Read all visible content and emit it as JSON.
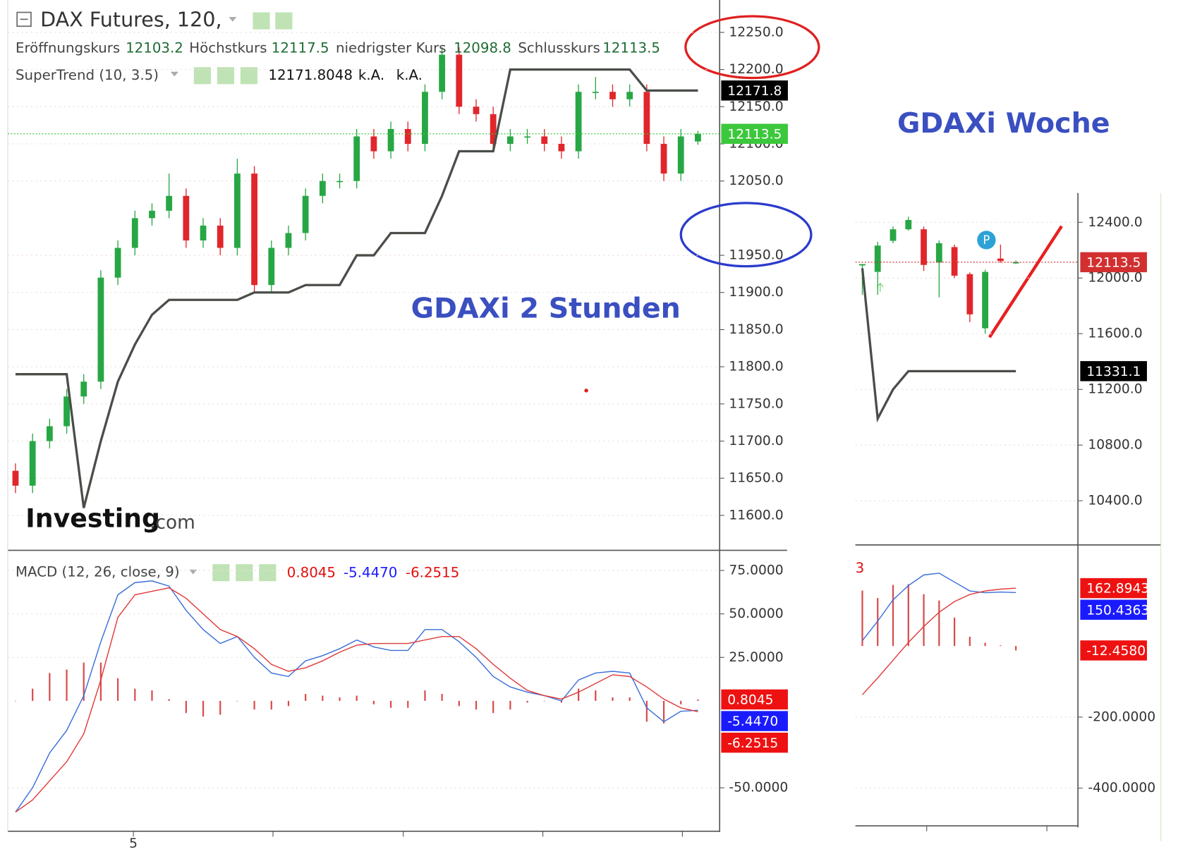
{
  "chart_data": [
    {
      "type": "candlestick",
      "title": "DAX Futures, 120,",
      "annotation": "GDAXi 2 Stunden",
      "watermark": [
        "Investing",
        ".com"
      ],
      "ohlc_labels": [
        "Eröffnungskurs",
        "Höchstkurs",
        "niedrigster Kurs",
        "Schlusskurs"
      ],
      "open": [
        11660,
        11640,
        11700,
        11720,
        11760,
        11780,
        11920,
        11960,
        12000,
        12010,
        12030,
        11970,
        11990,
        11960,
        12060,
        11910,
        11960,
        11980,
        12030,
        12050,
        12050,
        12110,
        12090,
        12120,
        12100,
        12170,
        12220,
        12150,
        12140,
        12100,
        12110,
        12110,
        12100,
        12090,
        12170,
        12170,
        12160,
        12170,
        12100,
        12060,
        12103.2
      ],
      "high": [
        11670,
        11710,
        11730,
        11770,
        11790,
        11930,
        11970,
        12010,
        12020,
        12060,
        12040,
        12000,
        12000,
        12080,
        12070,
        11970,
        11990,
        12040,
        12060,
        12060,
        12120,
        12120,
        12130,
        12130,
        12180,
        12230,
        12230,
        12160,
        12150,
        12120,
        12120,
        12120,
        12110,
        12180,
        12190,
        12180,
        12180,
        12180,
        12110,
        12120,
        12117.5
      ],
      "low": [
        11630,
        11630,
        11690,
        11710,
        11750,
        11770,
        11910,
        11950,
        11990,
        12000,
        11960,
        11960,
        11950,
        11950,
        11900,
        11900,
        11950,
        11970,
        12020,
        12040,
        12040,
        12080,
        12080,
        12090,
        12090,
        12160,
        12140,
        12130,
        12090,
        12090,
        12100,
        12090,
        12080,
        12080,
        12160,
        12150,
        12150,
        12090,
        12050,
        12050,
        12098.8
      ],
      "close": [
        11640,
        11700,
        11720,
        11760,
        11780,
        11920,
        11960,
        12000,
        12010,
        12030,
        11970,
        11990,
        11960,
        12060,
        11910,
        11960,
        11980,
        12030,
        12050,
        12050,
        12110,
        12090,
        12120,
        12100,
        12170,
        12220,
        12150,
        12140,
        12100,
        12110,
        12110,
        12100,
        12090,
        12170,
        12170,
        12160,
        12170,
        12100,
        12060,
        12110,
        12113.5
      ],
      "up_color": "#27a744",
      "down_color": "#e0262b",
      "price_line_color": "#3cc83c",
      "indicator": {
        "name": "SuperTrend (10, 3.5)",
        "color": "#4a4d48",
        "na_labels": [
          "k.A.",
          "k.A."
        ],
        "axis_label": "12171.8",
        "values": [
          11790,
          11790,
          11790,
          11790,
          11610,
          11700,
          11780,
          11830,
          11870,
          11890,
          11890,
          11890,
          11890,
          11890,
          11900,
          11900,
          11900,
          11910,
          11910,
          11910,
          11950,
          11950,
          11980,
          11980,
          11980,
          12030,
          12090,
          12090,
          12090,
          12200,
          12200,
          12200,
          12200,
          12200,
          12200,
          12200,
          12200,
          12171.8,
          12171.8,
          12171.8,
          12171.8048
        ]
      },
      "ylim": [
        11553,
        12293.6
      ],
      "yticks": [
        {
          "value": 12250,
          "label": "12250.0"
        },
        {
          "value": 12200,
          "label": "12200.0"
        },
        {
          "value": 12150,
          "label": "12150.0"
        },
        {
          "value": 12100,
          "label": "12100.0"
        },
        {
          "value": 12050,
          "label": "12050.0"
        },
        {
          "value": 11950,
          "label": "11950.0"
        },
        {
          "value": 11900,
          "label": "11900.0"
        },
        {
          "value": 11850,
          "label": "11850.0"
        },
        {
          "value": 11800,
          "label": "11800.0"
        },
        {
          "value": 11750,
          "label": "11750.0"
        },
        {
          "value": 11700,
          "label": "11700.0"
        },
        {
          "value": 11650,
          "label": "11650.0"
        },
        {
          "value": 11600,
          "label": "11600.0"
        }
      ],
      "grid": true
    },
    {
      "type": "macd",
      "title": "MACD (12, 26, close, 9)",
      "x_tick_label": "5",
      "series": [
        {
          "kind": "histogram",
          "color": "#d94a4a",
          "values": [
            0,
            7,
            16,
            18,
            22,
            22,
            13,
            7,
            6,
            1,
            -7,
            -9,
            -8,
            0,
            -5,
            -5,
            -3,
            4,
            3,
            2,
            3,
            -2,
            -4,
            -4,
            6,
            4,
            -3,
            -5,
            -7,
            -5,
            -1,
            0,
            -1,
            7,
            6,
            2,
            2,
            -12,
            -13,
            -2,
            0.8045
          ]
        },
        {
          "kind": "line",
          "color": "#3a6fd8",
          "values": [
            -64,
            -50,
            -30,
            -17,
            3,
            34,
            61,
            68,
            69,
            66,
            52,
            41,
            33,
            37,
            25,
            16,
            14,
            23,
            26,
            30,
            35,
            31,
            29,
            29,
            41,
            41,
            34,
            25,
            14,
            8,
            5,
            3,
            0,
            12,
            16,
            17,
            16,
            -4,
            -12,
            -6,
            -5.447
          ],
          "value_labels": [
            null,
            null,
            null,
            null,
            null,
            null,
            null,
            null,
            null,
            null,
            null,
            null,
            null,
            null,
            null,
            null,
            null,
            null,
            null,
            null,
            null,
            null,
            null,
            null,
            null,
            null,
            null,
            null,
            null,
            null,
            null,
            null,
            null,
            null,
            null,
            null,
            null,
            null,
            null,
            null,
            "-5.4470"
          ]
        },
        {
          "kind": "line",
          "color": "#e03b3b",
          "values": [
            -64,
            -57,
            -46,
            -35,
            -19,
            12,
            48,
            61,
            63,
            65,
            59,
            50,
            41,
            37,
            30,
            21,
            17,
            19,
            23,
            28,
            32,
            33,
            33,
            33,
            35,
            37,
            37,
            30,
            21,
            13,
            6,
            3,
            1,
            5,
            10,
            15,
            14,
            8,
            1,
            -4,
            -6.2515
          ]
        }
      ],
      "ylim": [
        -75,
        85.7
      ],
      "yticks": [
        {
          "value": 75,
          "label": "75.0000"
        },
        {
          "value": 50,
          "label": "50.0000"
        },
        {
          "value": 25,
          "label": "25.0000"
        },
        {
          "value": -50,
          "label": "-50.0000"
        }
      ],
      "grid": true
    },
    {
      "type": "candlestick",
      "annotation": "GDAXi Woche",
      "open": [
        12090,
        12044,
        12267,
        12350,
        12350,
        12111,
        12222,
        12028,
        11639,
        12140,
        12105
      ],
      "high": [
        12100,
        12260,
        12370,
        12440,
        12370,
        12270,
        12240,
        12040,
        12060,
        12240,
        12125
      ],
      "low": [
        11880,
        11880,
        12250,
        12340,
        12050,
        11861,
        12000,
        11683,
        11600,
        12110,
        12100
      ],
      "close": [
        12100,
        12233,
        12350,
        12417,
        12094,
        12250,
        12017,
        11739,
        12044,
        12122,
        12113.5
      ],
      "up_color": "#27a744",
      "down_color": "#e0262b",
      "price_line_color": "#d23030",
      "indicator": {
        "color": "#4a4d48",
        "values": [
          12070,
          10990,
          11200,
          11331.1,
          11331.1,
          11331.1,
          11331.1,
          11331.1,
          11331.1,
          11331.1,
          11331.1
        ]
      },
      "ylim": [
        10083,
        12611
      ],
      "yticks": [
        {
          "value": 12400,
          "label": "12400.0"
        },
        {
          "value": 12000,
          "label": "12000.0"
        },
        {
          "value": 11600,
          "label": "11600.0"
        },
        {
          "value": 11200,
          "label": "11200.0"
        },
        {
          "value": 10800,
          "label": "10800.0"
        },
        {
          "value": 10400,
          "label": "10400.0"
        }
      ],
      "grid": true
    },
    {
      "type": "macd",
      "title": "3",
      "series": [
        {
          "kind": "histogram",
          "color": "#d94a4a",
          "values": [
            156,
            135,
            172,
            174,
            146,
            128,
            80,
            26,
            9,
            2,
            -12.458
          ],
          "value_labels": [
            null,
            null,
            null,
            null,
            null,
            null,
            null,
            null,
            null,
            null,
            "-12.4580"
          ]
        },
        {
          "kind": "line",
          "color": "#3a6fd8",
          "values": [
            15,
            70,
            130,
            170,
            200,
            205,
            180,
            155,
            150,
            152,
            150.4363
          ]
        },
        {
          "kind": "line",
          "color": "#e03b3b",
          "values": [
            -137,
            -90,
            -40,
            10,
            55,
            95,
            125,
            145,
            155,
            160,
            162.8943
          ]
        }
      ],
      "ylim": [
        -506,
        265
      ],
      "yticks": [
        {
          "value": -200,
          "label": "-200.0000"
        },
        {
          "value": -400,
          "label": "-400.0000"
        }
      ],
      "grid": true
    }
  ]
}
